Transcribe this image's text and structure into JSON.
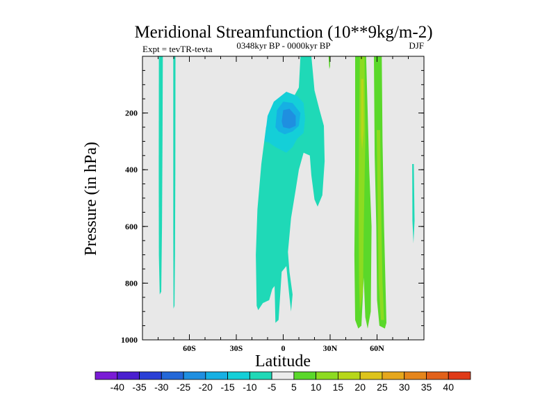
{
  "chart_data": {
    "type": "contour",
    "title": "Meridional Streamfunction (10**9kg/m-2)",
    "subtitle": "0348kyr BP - 0000kyr BP",
    "left_label": "Expt = tevTR-tevta",
    "right_label": "DJF",
    "xlabel": "Latitude",
    "ylabel": "Pressure (in hPa)",
    "xlim": [
      -90,
      90
    ],
    "ylim": [
      0,
      1000
    ],
    "y_inverted": true,
    "x_ticks": [
      {
        "value": -60,
        "label": "60S"
      },
      {
        "value": -30,
        "label": "30S"
      },
      {
        "value": 0,
        "label": "0"
      },
      {
        "value": 30,
        "label": "30N"
      },
      {
        "value": 60,
        "label": "60N"
      }
    ],
    "y_ticks": [
      {
        "value": 200,
        "label": "200"
      },
      {
        "value": 400,
        "label": "400"
      },
      {
        "value": 600,
        "label": "600"
      },
      {
        "value": 800,
        "label": "800"
      },
      {
        "value": 1000,
        "label": "1000"
      }
    ],
    "background_color": "#e8e8e8",
    "levels": [
      -40,
      -35,
      -30,
      -25,
      -20,
      -15,
      -10,
      -5,
      5,
      10,
      15,
      20,
      25,
      30,
      35,
      40
    ],
    "colorbar_colors": [
      "#7a1bd6",
      "#4a1fd0",
      "#2a3fd6",
      "#2468d8",
      "#1f8fe0",
      "#16b0e3",
      "#14cfd8",
      "#1fd9b7",
      "#ececec",
      "#5ad82a",
      "#8ddb21",
      "#b7d719",
      "#ddc41b",
      "#e6a71c",
      "#e5851b",
      "#e2611a",
      "#df3a17"
    ],
    "regions": [
      {
        "name": "vertical-strip-80s",
        "color": "#1fd9b7",
        "points": [
          [
            -79.5,
            0
          ],
          [
            -77,
            0
          ],
          [
            -77.2,
            300
          ],
          [
            -77.5,
            600
          ],
          [
            -78,
            830
          ],
          [
            -79,
            840
          ],
          [
            -79.5,
            700
          ],
          [
            -79.6,
            400
          ]
        ]
      },
      {
        "name": "vertical-strip-70s",
        "color": "#1fd9b7",
        "points": [
          [
            -70.3,
            0
          ],
          [
            -68.9,
            0
          ],
          [
            -69,
            400
          ],
          [
            -69.2,
            700
          ],
          [
            -69.5,
            880
          ],
          [
            -70.2,
            890
          ],
          [
            -70.3,
            600
          ]
        ]
      },
      {
        "name": "tropical-cell-outer",
        "color": "#1fd9b7",
        "points": [
          [
            -17,
            880
          ],
          [
            -17.5,
            700
          ],
          [
            -16.5,
            540
          ],
          [
            -14,
            380
          ],
          [
            -11,
            250
          ],
          [
            -7,
            180
          ],
          [
            -1,
            170
          ],
          [
            6,
            150
          ],
          [
            10,
            110
          ],
          [
            11,
            0
          ],
          [
            18,
            0
          ],
          [
            19,
            60
          ],
          [
            20,
            120
          ],
          [
            23,
            185
          ],
          [
            26,
            245
          ],
          [
            26.5,
            370
          ],
          [
            25,
            490
          ],
          [
            22,
            530
          ],
          [
            20,
            505
          ],
          [
            18,
            420
          ],
          [
            17,
            350
          ],
          [
            13,
            340
          ],
          [
            10,
            400
          ],
          [
            8,
            470
          ],
          [
            5,
            570
          ],
          [
            3,
            690
          ],
          [
            4,
            760
          ],
          [
            6,
            840
          ],
          [
            5,
            900
          ],
          [
            4,
            850
          ],
          [
            2,
            740
          ],
          [
            -1,
            760
          ],
          [
            -3,
            930
          ],
          [
            -5,
            940
          ],
          [
            -5.5,
            810
          ],
          [
            -7,
            820
          ],
          [
            -9,
            860
          ],
          [
            -13,
            870
          ],
          [
            -16,
            895
          ]
        ]
      },
      {
        "name": "tropical-cell-inner",
        "color": "#14cfd8",
        "points": [
          [
            -12,
            300
          ],
          [
            -10,
            210
          ],
          [
            -6,
            160
          ],
          [
            2,
            125
          ],
          [
            9,
            140
          ],
          [
            13,
            165
          ],
          [
            14,
            220
          ],
          [
            13,
            270
          ],
          [
            9,
            290
          ],
          [
            6,
            320
          ],
          [
            2,
            340
          ],
          [
            -5,
            320
          ],
          [
            -9,
            305
          ]
        ]
      },
      {
        "name": "tropical-cell-core",
        "color": "#16b0e3",
        "points": [
          [
            -5,
            250
          ],
          [
            -4,
            190
          ],
          [
            0,
            160
          ],
          [
            6,
            165
          ],
          [
            11,
            200
          ],
          [
            10,
            245
          ],
          [
            6,
            265
          ],
          [
            1,
            275
          ],
          [
            -3,
            265
          ]
        ]
      },
      {
        "name": "tropical-cell-peak",
        "color": "#1f8fe0",
        "points": [
          [
            -1,
            230
          ],
          [
            0,
            190
          ],
          [
            4,
            185
          ],
          [
            8,
            210
          ],
          [
            8,
            245
          ],
          [
            4,
            255
          ],
          [
            0,
            250
          ]
        ]
      },
      {
        "name": "small-streak-30n",
        "color": "#5ad82a",
        "points": [
          [
            29,
            0
          ],
          [
            30,
            0
          ],
          [
            30,
            35
          ],
          [
            29.5,
            45
          ]
        ]
      },
      {
        "name": "band-45n-outer",
        "color": "#5ad82a",
        "points": [
          [
            46,
            0
          ],
          [
            53,
            0
          ],
          [
            55,
            400
          ],
          [
            56.5,
            600
          ],
          [
            56,
            900
          ],
          [
            54,
            960
          ],
          [
            52.5,
            920
          ],
          [
            51.5,
            780
          ],
          [
            50,
            950
          ],
          [
            48,
            960
          ],
          [
            46,
            930
          ],
          [
            45.5,
            700
          ],
          [
            46,
            400
          ]
        ]
      },
      {
        "name": "band-45n-inner",
        "color": "#8ddb21",
        "points": [
          [
            49,
            0
          ],
          [
            52,
            0
          ],
          [
            52.5,
            300
          ],
          [
            51.5,
            600
          ],
          [
            51,
            830
          ],
          [
            49,
            900
          ],
          [
            48.5,
            800
          ],
          [
            48.2,
            500
          ],
          [
            48.5,
            250
          ]
        ]
      },
      {
        "name": "band-45n-core",
        "color": "#b7d719",
        "points": [
          [
            49.8,
            80
          ],
          [
            51.3,
            80
          ],
          [
            51.5,
            260
          ],
          [
            50.5,
            330
          ],
          [
            49.8,
            280
          ]
        ]
      },
      {
        "name": "band-60n-outer",
        "color": "#5ad82a",
        "points": [
          [
            58,
            0
          ],
          [
            63,
            0
          ],
          [
            63.5,
            300
          ],
          [
            64.5,
            600
          ],
          [
            66,
            940
          ],
          [
            65,
            960
          ],
          [
            61.5,
            950
          ],
          [
            60,
            860
          ],
          [
            59.5,
            600
          ],
          [
            58.5,
            350
          ]
        ]
      },
      {
        "name": "band-60n-inner",
        "color": "#8ddb21",
        "points": [
          [
            59.8,
            260
          ],
          [
            62,
            260
          ],
          [
            62.5,
            500
          ],
          [
            63.5,
            800
          ],
          [
            64.5,
            930
          ],
          [
            62.5,
            930
          ],
          [
            61,
            800
          ],
          [
            60.5,
            550
          ]
        ]
      },
      {
        "name": "right-edge-sliver",
        "color": "#1fd9b7",
        "points": [
          [
            82.5,
            380
          ],
          [
            83.5,
            380
          ],
          [
            84,
            580
          ],
          [
            83.3,
            660
          ],
          [
            82.6,
            580
          ]
        ]
      }
    ]
  }
}
